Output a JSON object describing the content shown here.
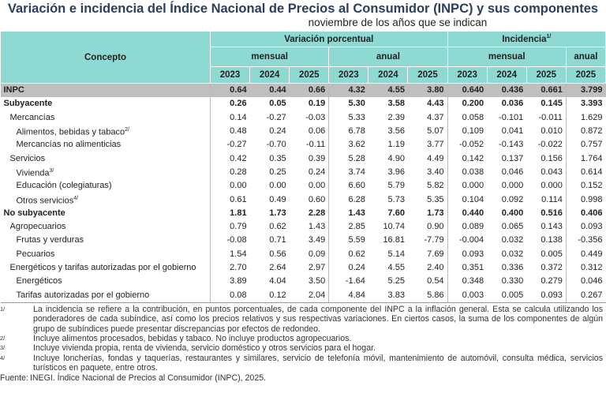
{
  "header": {
    "title": "Variación e incidencia del Índice Nacional de Precios al Consumidor (INPC) y sus componentes",
    "subtitle": "noviembre de los años que se indican"
  },
  "table": {
    "concept_header": "Concepto",
    "groups": [
      {
        "text": "Variación porcentual",
        "span": 6
      },
      {
        "text": "Incidencia",
        "note": "1/",
        "span": 4
      }
    ],
    "subgroups": [
      {
        "text": "mensual",
        "span": 3
      },
      {
        "text": "anual",
        "span": 3
      },
      {
        "text": "mensual",
        "span": 3
      },
      {
        "text": "anual",
        "span": 1
      }
    ],
    "years": [
      "2023",
      "2024",
      "2025",
      "2023",
      "2024",
      "2025",
      "2023",
      "2024",
      "2025",
      "2025"
    ],
    "rows": [
      {
        "label": "INPC",
        "level": 0,
        "bold": true,
        "highlight": true,
        "values": [
          "0.64",
          "0.44",
          "0.66",
          "4.32",
          "4.55",
          "3.80",
          "0.640",
          "0.436",
          "0.661",
          "3.799"
        ]
      },
      {
        "label": "Subyacente",
        "level": 0,
        "bold": true,
        "values": [
          "0.26",
          "0.05",
          "0.19",
          "5.30",
          "3.58",
          "4.43",
          "0.200",
          "0.036",
          "0.145",
          "3.393"
        ]
      },
      {
        "label": "Mercancías",
        "level": 1,
        "values": [
          "0.14",
          "-0.27",
          "-0.03",
          "5.33",
          "2.39",
          "4.37",
          "0.058",
          "-0.101",
          "-0.011",
          "1.629"
        ]
      },
      {
        "label": "Alimentos, bebidas y tabaco",
        "note": "2/",
        "level": 2,
        "values": [
          "0.48",
          "0.24",
          "0.06",
          "6.78",
          "3.56",
          "5.07",
          "0.109",
          "0.041",
          "0.010",
          "0.872"
        ]
      },
      {
        "label": "Mercancías no alimenticias",
        "level": 2,
        "values": [
          "-0.27",
          "-0.70",
          "-0.11",
          "3.62",
          "1.19",
          "3.77",
          "-0.052",
          "-0.143",
          "-0.022",
          "0.757"
        ]
      },
      {
        "label": "Servicios",
        "level": 1,
        "values": [
          "0.42",
          "0.35",
          "0.39",
          "5.28",
          "4.90",
          "4.49",
          "0.142",
          "0.137",
          "0.156",
          "1.764"
        ]
      },
      {
        "label": "Vivienda",
        "note": "3/",
        "level": 2,
        "values": [
          "0.28",
          "0.25",
          "0.24",
          "3.74",
          "3.96",
          "3.40",
          "0.038",
          "0.046",
          "0.043",
          "0.614"
        ]
      },
      {
        "label": "Educación (colegiaturas)",
        "level": 2,
        "values": [
          "0.00",
          "0.00",
          "0.00",
          "6.60",
          "5.79",
          "5.82",
          "0.000",
          "0.000",
          "0.000",
          "0.152"
        ]
      },
      {
        "label": "Otros servicios",
        "note": "4/",
        "level": 2,
        "values": [
          "0.61",
          "0.49",
          "0.60",
          "6.28",
          "5.73",
          "5.35",
          "0.104",
          "0.092",
          "0.114",
          "0.998"
        ]
      },
      {
        "label": "No subyacente",
        "level": 0,
        "bold": true,
        "values": [
          "1.81",
          "1.73",
          "2.28",
          "1.43",
          "7.60",
          "1.73",
          "0.440",
          "0.400",
          "0.516",
          "0.406"
        ]
      },
      {
        "label": "Agropecuarios",
        "level": 1,
        "values": [
          "0.79",
          "0.62",
          "1.43",
          "2.85",
          "10.74",
          "0.90",
          "0.089",
          "0.065",
          "0.143",
          "0.093"
        ]
      },
      {
        "label": "Frutas y verduras",
        "level": 2,
        "values": [
          "-0.08",
          "0.71",
          "3.49",
          "5.59",
          "16.81",
          "-7.79",
          "-0.004",
          "0.032",
          "0.138",
          "-0.356"
        ]
      },
      {
        "label": "Pecuarios",
        "level": 2,
        "values": [
          "1.54",
          "0.56",
          "0.09",
          "0.62",
          "5.14",
          "7.69",
          "0.093",
          "0.032",
          "0.005",
          "0.449"
        ]
      },
      {
        "label": "Energéticos y tarifas autorizadas por el gobierno",
        "level": 1,
        "values": [
          "2.70",
          "2.64",
          "2.97",
          "0.24",
          "4.55",
          "2.40",
          "0.351",
          "0.336",
          "0.372",
          "0.312"
        ]
      },
      {
        "label": "Energéticos",
        "level": 2,
        "values": [
          "3.89",
          "4.04",
          "3.50",
          "-1.64",
          "5.25",
          "0.54",
          "0.348",
          "0.330",
          "0.279",
          "0.046"
        ]
      },
      {
        "label": "Tarifas autorizadas por el gobierno",
        "level": 2,
        "values": [
          "0.08",
          "0.12",
          "2.04",
          "4.84",
          "3.83",
          "5.86",
          "0.003",
          "0.005",
          "0.093",
          "0.267"
        ]
      }
    ]
  },
  "footnotes": [
    {
      "marker": "1/",
      "text": "La incidencia se refiere a la contribución, en puntos porcentuales, de cada componente del INPC a la inflación general. Esta se calcula utilizando los ponderadores de cada subíndice, así como los precios relativos y sus respectivas variaciones. En ciertos casos, la suma de los componentes de algún grupo de subíndices puede presentar discrepancias por efectos de redondeo."
    },
    {
      "marker": "2/",
      "text": "Incluye alimentos procesados, bebidas y tabaco. No incluye productos agropecuarios."
    },
    {
      "marker": "3/",
      "text": "Incluye vivienda propia, renta de vivienda, servicio doméstico y otros servicios para el hogar."
    },
    {
      "marker": "4/",
      "text": "Incluye loncherías, fondas y taquerías, restaurantes y similares, servicio de telefonía móvil, mantenimiento de automóvil, consulta médica, servicios turísticos en paquete, entre otros."
    }
  ],
  "source": {
    "label": "Fuente:",
    "text": "INEGI. Índice Nacional de Precios al Consumidor (INPC), 2025."
  }
}
